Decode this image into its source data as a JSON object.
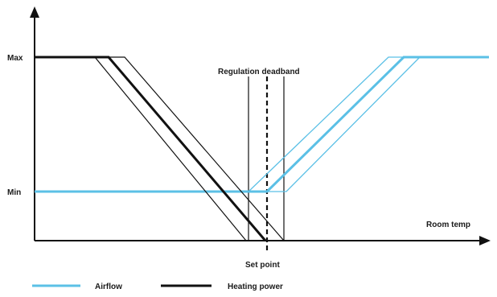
{
  "labels": {
    "max": "Max",
    "min": "Min",
    "room_temp": "Room temp",
    "set_point": "Set point",
    "deadband": "Regulation deadband"
  },
  "legend": {
    "airflow": "Airflow",
    "heating_power": "Heating power"
  },
  "colors": {
    "airflow": "#5bc0e6",
    "heating": "#111111",
    "axis": "#111111"
  }
}
